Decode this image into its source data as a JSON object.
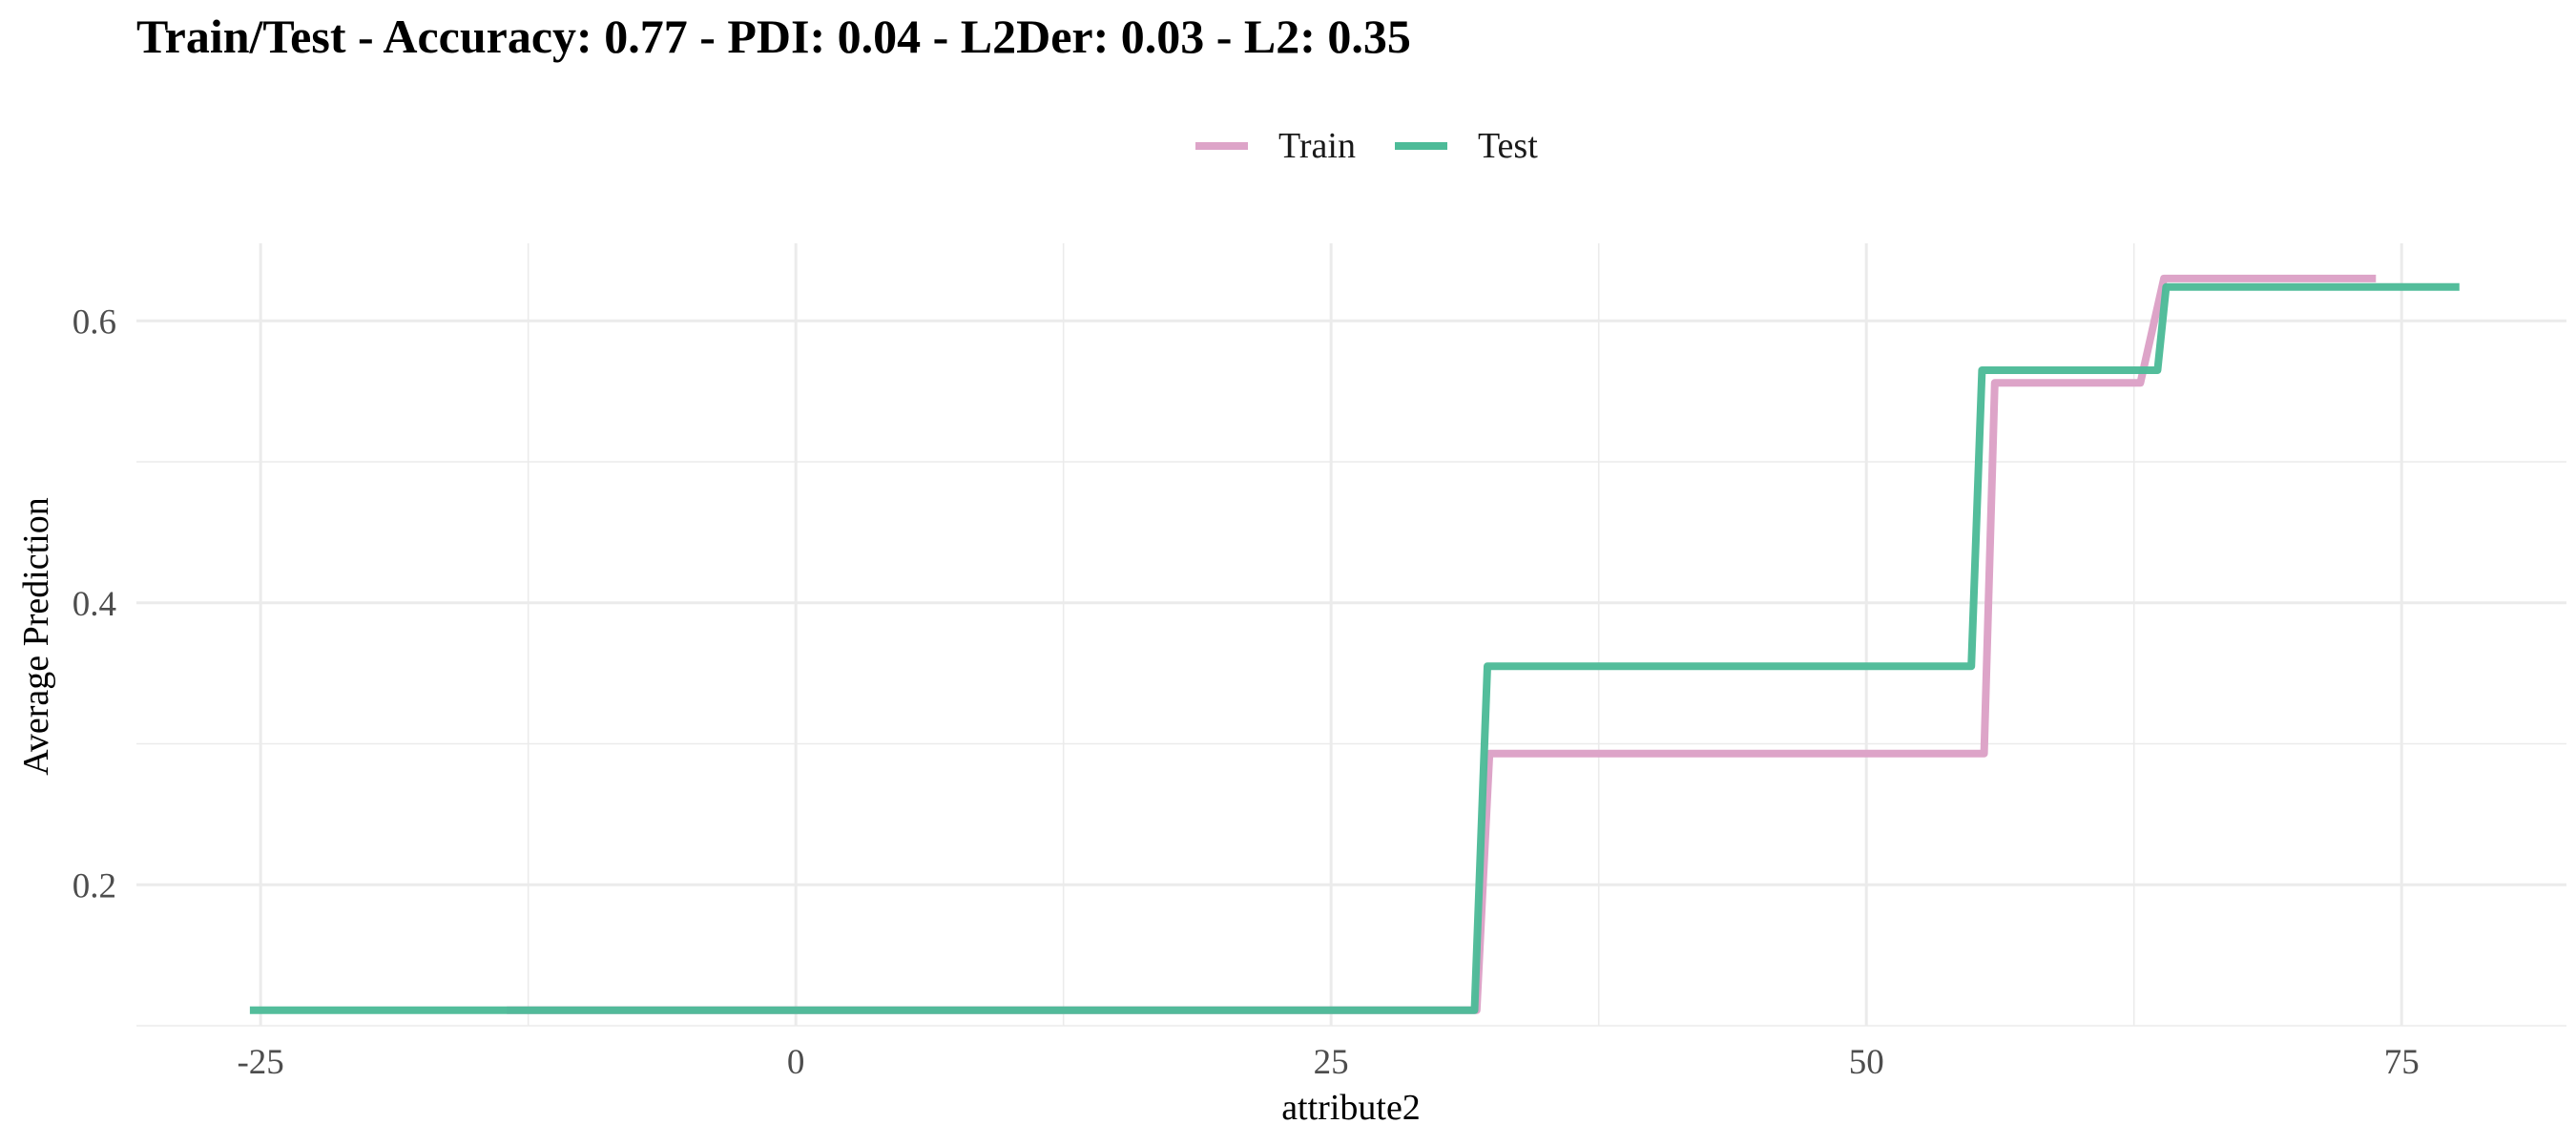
{
  "chart_data": {
    "type": "line",
    "title": "Train/Test - Accuracy: 0.77 - PDI: 0.04 - L2Der: 0.03 - L2: 0.35",
    "xlabel": "attribute2",
    "ylabel": "Average Prediction",
    "xlim": [
      -30.8,
      82.7
    ],
    "ylim": [
      0.1,
      0.655
    ],
    "x_ticks": [
      -25,
      0,
      25,
      50,
      75
    ],
    "x_tick_labels": [
      "-25",
      "0",
      "25",
      "50",
      "75"
    ],
    "y_ticks": [
      0.2,
      0.4,
      0.6
    ],
    "y_tick_labels": [
      "0.2",
      "0.4",
      "0.6"
    ],
    "grid": true,
    "legend_position": "top",
    "series": [
      {
        "name": "Train",
        "color": "#dda4c8",
        "x": [
          -13.5,
          31.8,
          32.4,
          55.5,
          56.0,
          62.8,
          63.9,
          73.8
        ],
        "y": [
          0.111,
          0.111,
          0.293,
          0.293,
          0.556,
          0.556,
          0.63,
          0.63
        ]
      },
      {
        "name": "Test",
        "color": "#4dbb98",
        "x": [
          -25.5,
          31.7,
          32.3,
          54.9,
          55.4,
          63.6,
          64.0,
          77.7
        ],
        "y": [
          0.111,
          0.111,
          0.355,
          0.355,
          0.565,
          0.565,
          0.624,
          0.624
        ]
      }
    ]
  }
}
